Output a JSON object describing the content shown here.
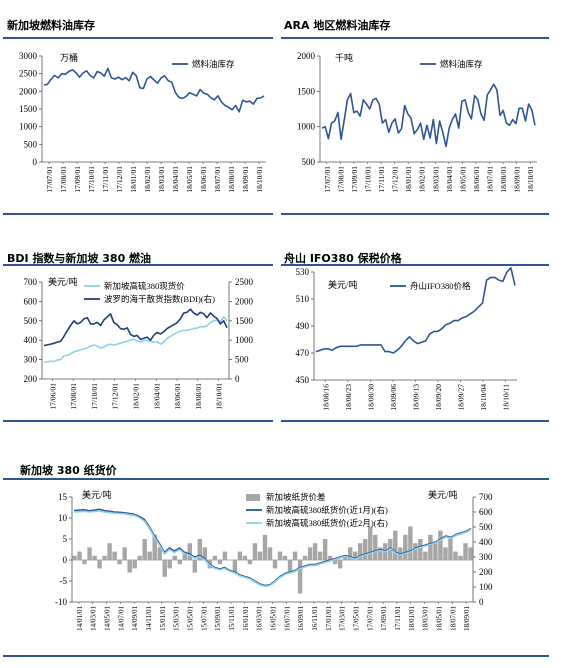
{
  "titles": {
    "p1": "新加坡燃料油库存",
    "p2": "ARA 地区燃料油库存",
    "p3": "BDI 指数与新加坡 380 燃油",
    "p4": "舟山 IFO380 保税价格",
    "p5": "新加坡 380 纸货价"
  },
  "chart_data": [
    {
      "id": "sg-inventory",
      "type": "line",
      "title": "新加坡燃料油库存",
      "unit_label": "万桶",
      "ylim": [
        0,
        3000
      ],
      "yticks": [
        0,
        500,
        1000,
        1500,
        2000,
        2500,
        3000
      ],
      "xticks": [
        "17/07/01",
        "17/08/01",
        "17/09/01",
        "17/10/01",
        "17/11/01",
        "17/12/01",
        "18/01/01",
        "18/02/01",
        "18/03/01",
        "18/04/01",
        "18/05/01",
        "18/06/01",
        "18/07/01",
        "18/08/01",
        "18/09/01",
        "18/10/01"
      ],
      "series": [
        {
          "name": "燃料油库存",
          "color": "#2f5597",
          "values": [
            2180,
            2200,
            2350,
            2450,
            2380,
            2500,
            2480,
            2560,
            2610,
            2530,
            2400,
            2520,
            2580,
            2450,
            2380,
            2560,
            2520,
            2430,
            2650,
            2380,
            2350,
            2400,
            2330,
            2390,
            2300,
            2540,
            2440,
            2100,
            2080,
            2350,
            2420,
            2320,
            2230,
            2380,
            2440,
            2300,
            2260,
            1970,
            1830,
            1800,
            1850,
            1960,
            1920,
            1870,
            2050,
            1950,
            1920,
            1820,
            1760,
            1870,
            1700,
            1600,
            1550,
            1480,
            1600,
            1420,
            1750,
            1700,
            1720,
            1640,
            1800,
            1810,
            1870
          ]
        }
      ]
    },
    {
      "id": "ara-inventory",
      "type": "line",
      "title": "ARA 地区燃料油库存",
      "unit_label": "千吨",
      "ylim": [
        500,
        2000
      ],
      "yticks": [
        500,
        1000,
        1500,
        2000
      ],
      "xticks": [
        "17/07/01",
        "17/08/01",
        "17/09/01",
        "17/10/01",
        "17/11/01",
        "17/12/01",
        "18/01/01",
        "18/02/01",
        "18/03/01",
        "18/04/01",
        "18/05/01",
        "18/06/01",
        "18/07/01",
        "18/08/01",
        "18/09/01",
        "18/10/01"
      ],
      "series": [
        {
          "name": "燃料油库存",
          "color": "#2f5597",
          "values": [
            980,
            1000,
            830,
            1050,
            1080,
            1200,
            820,
            1100,
            1380,
            1470,
            1200,
            1220,
            1150,
            1380,
            1320,
            1250,
            1380,
            1400,
            1320,
            1050,
            1100,
            920,
            1050,
            1110,
            910,
            970,
            1300,
            1180,
            1120,
            900,
            960,
            1050,
            820,
            1020,
            840,
            1100,
            760,
            1080,
            920,
            720,
            980,
            1100,
            1180,
            980,
            1360,
            1380,
            1200,
            1110,
            1440,
            1380,
            1180,
            1090,
            1450,
            1520,
            1600,
            1520,
            1160,
            1230,
            1050,
            1020,
            1100,
            1040,
            1260,
            1260,
            1080,
            1320,
            1240,
            1020
          ]
        }
      ]
    },
    {
      "id": "bdi-vs-sg380",
      "type": "line",
      "title": "BDI 指数与新加坡 380 燃油",
      "unit_label": "美元/吨",
      "ylim": [
        200,
        700
      ],
      "yticks": [
        200,
        300,
        400,
        500,
        600,
        700
      ],
      "y2lim": [
        0,
        2500
      ],
      "y2ticks": [
        0,
        500,
        1000,
        1500,
        2000,
        2500
      ],
      "xticks": [
        "17/06/01",
        "17/08/01",
        "17/10/01",
        "17/12/01",
        "18/02/01",
        "18/04/01",
        "18/06/01",
        "18/08/01",
        "18/10/01"
      ],
      "series": [
        {
          "name": "新加坡高硫380现货价",
          "axis": "left",
          "color": "#8fd0ef",
          "values": [
            285,
            288,
            292,
            290,
            298,
            300,
            320,
            322,
            330,
            340,
            345,
            350,
            355,
            360,
            370,
            375,
            370,
            360,
            365,
            375,
            380,
            375,
            380,
            385,
            390,
            395,
            400,
            405,
            395,
            390,
            400,
            398,
            395,
            390,
            392,
            380,
            390,
            410,
            420,
            430,
            440,
            445,
            450,
            452,
            455,
            460,
            462,
            470,
            468,
            475,
            490,
            500,
            505,
            495,
            520,
            500
          ]
        },
        {
          "name": "波罗的海干散货指数(BDI)(右)",
          "axis": "right",
          "color": "#1f3f7a",
          "values": [
            860,
            880,
            900,
            920,
            950,
            970,
            1100,
            1250,
            1380,
            1500,
            1420,
            1460,
            1550,
            1580,
            1420,
            1420,
            1460,
            1380,
            1520,
            1600,
            1680,
            1450,
            1400,
            1300,
            1280,
            1320,
            1150,
            1100,
            1120,
            1020,
            1050,
            1080,
            1000,
            1130,
            1200,
            1160,
            1220,
            1300,
            1350,
            1400,
            1450,
            1550,
            1700,
            1720,
            1800,
            1700,
            1650,
            1720,
            1680,
            1580,
            1700,
            1620,
            1560,
            1420,
            1500,
            1320
          ]
        }
      ]
    },
    {
      "id": "zhoushan-ifo380",
      "type": "line",
      "title": "舟山 IFO380 保税价格",
      "unit_label": "美元/吨",
      "ylim": [
        450,
        530
      ],
      "yticks": [
        450,
        470,
        490,
        510,
        530
      ],
      "xticks": [
        "18/08/16",
        "18/08/23",
        "18/08/30",
        "18/09/06",
        "18/09/13",
        "18/09/20",
        "18/09/27",
        "18/10/04",
        "18/10/11"
      ],
      "series": [
        {
          "name": "舟山IFO380价格",
          "color": "#2f5597",
          "values": [
            471,
            472,
            473,
            473,
            472,
            474,
            475,
            475,
            475,
            475,
            475,
            476,
            476,
            476,
            476,
            476,
            476,
            471,
            471,
            470,
            472,
            475,
            479,
            482,
            479,
            477,
            478,
            479,
            484,
            486,
            486,
            488,
            491,
            492,
            494,
            494,
            496,
            497,
            499,
            501,
            504,
            507,
            524,
            526,
            526,
            524,
            523,
            530,
            533,
            520
          ]
        }
      ]
    },
    {
      "id": "sg380-paper",
      "type": "line",
      "title": "新加坡 380 纸货价",
      "unit_label": "美元/吨",
      "ylim": [
        -10,
        15
      ],
      "yticks": [
        -10,
        -5,
        0,
        5,
        10,
        15
      ],
      "y2lim": [
        0,
        700
      ],
      "y2ticks": [
        0,
        100,
        200,
        300,
        400,
        500,
        600,
        700
      ],
      "xticks": [
        "14/01/01",
        "14/03/01",
        "14/05/01",
        "14/07/01",
        "14/09/01",
        "14/11/01",
        "15/01/01",
        "15/03/01",
        "15/05/01",
        "15/07/01",
        "15/09/01",
        "15/11/01",
        "16/01/01",
        "16/03/01",
        "16/05/01",
        "16/07/01",
        "16/09/01",
        "16/11/01",
        "17/01/01",
        "17/03/01",
        "17/05/01",
        "17/07/01",
        "17/09/01",
        "17/11/01",
        "18/01/01",
        "18/03/01",
        "18/05/01",
        "18/07/01",
        "18/09/01"
      ],
      "series": [
        {
          "name": "新加坡纸货价差",
          "axis": "left",
          "kind": "bar",
          "color": "#a6a6a6",
          "values": [
            1,
            2,
            -1,
            3,
            1,
            -2,
            1,
            4,
            2,
            -1,
            3,
            -3,
            -2,
            1,
            5,
            2,
            6,
            3,
            -4,
            -2,
            1,
            -1,
            2,
            4,
            -3,
            5,
            3,
            -2,
            1,
            -1,
            2,
            0,
            -3,
            2,
            1,
            -1,
            4,
            2,
            6,
            3,
            -2,
            2,
            1,
            -3,
            2,
            -8,
            1,
            3,
            4,
            2,
            5,
            1,
            -1,
            -2,
            1,
            3,
            2,
            4,
            5,
            8,
            6,
            3,
            4,
            5,
            7,
            3,
            6,
            8,
            4,
            5,
            2,
            6,
            4,
            7,
            3,
            5,
            2,
            1,
            4,
            3
          ]
        },
        {
          "name": "新加坡高硫380纸货价(近1月)(右)",
          "axis": "right",
          "color": "#2f5597",
          "values": [
            610,
            612,
            615,
            608,
            612,
            618,
            610,
            605,
            600,
            598,
            595,
            590,
            585,
            570,
            550,
            500,
            440,
            390,
            330,
            360,
            340,
            360,
            330,
            320,
            300,
            310,
            290,
            250,
            230,
            220,
            230,
            210,
            200,
            180,
            170,
            160,
            140,
            120,
            110,
            115,
            140,
            170,
            190,
            200,
            210,
            230,
            240,
            250,
            250,
            260,
            270,
            280,
            290,
            300,
            310,
            300,
            290,
            310,
            320,
            330,
            340,
            350,
            340,
            360,
            330,
            320,
            330,
            340,
            360,
            370,
            380,
            390,
            400,
            420,
            440,
            430,
            450,
            460,
            470,
            490
          ]
        },
        {
          "name": "新加坡高硫380纸货价(近2月)(右)",
          "axis": "right",
          "color": "#8fd0ef",
          "values": [
            600,
            602,
            605,
            600,
            603,
            608,
            600,
            596,
            592,
            590,
            588,
            582,
            578,
            562,
            540,
            490,
            430,
            380,
            320,
            350,
            330,
            350,
            322,
            312,
            292,
            302,
            282,
            244,
            224,
            214,
            224,
            204,
            194,
            174,
            164,
            154,
            134,
            114,
            104,
            110,
            134,
            164,
            184,
            194,
            204,
            224,
            234,
            244,
            244,
            254,
            264,
            274,
            284,
            294,
            304,
            294,
            284,
            304,
            314,
            324,
            334,
            344,
            334,
            354,
            324,
            314,
            324,
            334,
            354,
            364,
            374,
            384,
            394,
            414,
            434,
            424,
            444,
            454,
            464,
            484
          ]
        }
      ]
    }
  ]
}
